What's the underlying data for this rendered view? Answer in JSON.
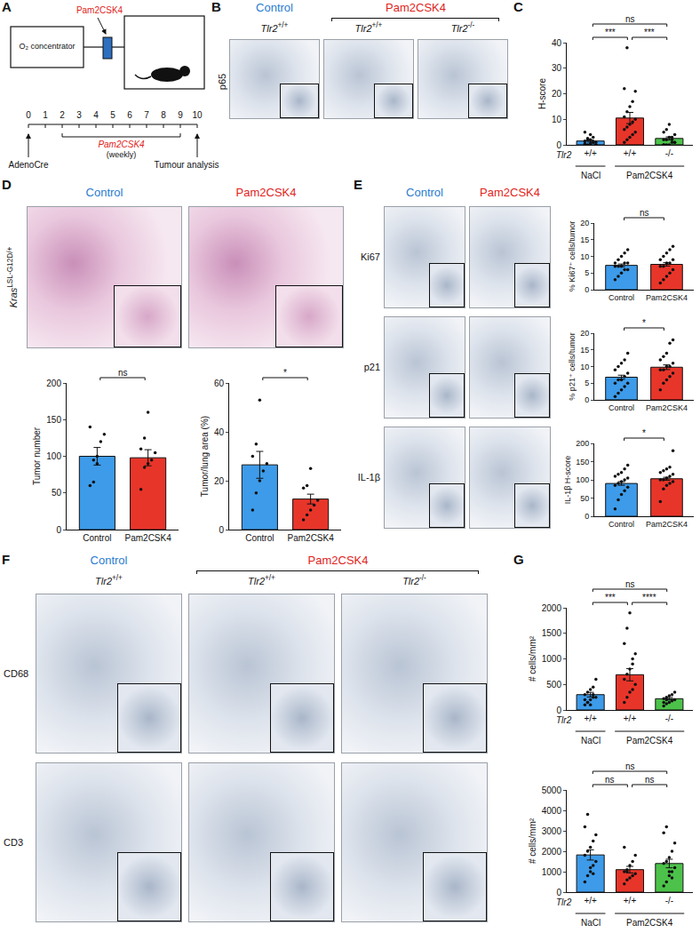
{
  "figure": {
    "A": {
      "letter": "A",
      "device": "O₂ concentrator",
      "agent": "Pam2CSK4",
      "timeline_ticks": [
        0,
        1,
        2,
        3,
        4,
        5,
        6,
        7,
        8,
        9,
        10
      ],
      "start": {
        "at": 0,
        "label": "AdenoCre"
      },
      "treatment": {
        "from": 2,
        "to": 9,
        "label": "Pam2CSK4",
        "note": "(weekly)"
      },
      "end": {
        "at": 10,
        "label": "Tumour analysis"
      }
    },
    "B": {
      "letter": "B",
      "groups": [
        {
          "label": "Control",
          "color": "#2a7bd0",
          "span": [
            0,
            0
          ]
        },
        {
          "label": "Pam2CSK4",
          "color": "#e0231b",
          "span": [
            1,
            2
          ]
        }
      ],
      "gene": "Tlr2",
      "genotypes": [
        "+/+",
        "+/+",
        "-/-"
      ],
      "rows": [
        "p65"
      ]
    },
    "D": {
      "letter": "D",
      "groups": [
        {
          "label": "Control",
          "color": "#2a7bd0",
          "span": [
            0,
            0
          ]
        },
        {
          "label": "Pam2CSK4",
          "color": "#e0231b",
          "span": [
            1,
            1
          ]
        }
      ],
      "row_gene": "Kras",
      "row_allele": "LSL-G12D/+"
    },
    "E": {
      "letter": "E",
      "groups": [
        {
          "label": "Control",
          "color": "#2a7bd0",
          "span": [
            0,
            0
          ]
        },
        {
          "label": "Pam2CSK4",
          "color": "#e0231b",
          "span": [
            1,
            1
          ]
        }
      ],
      "rows": [
        "Ki67",
        "p21",
        "IL-1β"
      ]
    },
    "F": {
      "letter": "F",
      "groups": [
        {
          "label": "Control",
          "color": "#2a7bd0",
          "span": [
            0,
            0
          ]
        },
        {
          "label": "Pam2CSK4",
          "color": "#e0231b",
          "span": [
            1,
            2
          ]
        }
      ],
      "gene": "Tlr2",
      "genotypes": [
        "+/+",
        "+/+",
        "-/-"
      ],
      "rows": [
        "CD68",
        "CD3"
      ]
    }
  },
  "chart_data": [
    {
      "panel": "C",
      "type": "bar",
      "ylabel": "H-score",
      "gene": "Tlr2",
      "categories": [
        "+/+",
        "+/+",
        "-/-"
      ],
      "groups": [
        {
          "label": "NaCl",
          "span": [
            0,
            0
          ]
        },
        {
          "label": "Pam2CSK4",
          "span": [
            1,
            2
          ]
        }
      ],
      "values": [
        1.5,
        10.5,
        2.5
      ],
      "errors": [
        0.4,
        2.2,
        0.6
      ],
      "colors": [
        "#3d9be9",
        "#e8352a",
        "#4cc24a"
      ],
      "points": [
        [
          0,
          0,
          0.5,
          1,
          1,
          1.5,
          2,
          2,
          3,
          0,
          0.5,
          2.5,
          4,
          1,
          0,
          5
        ],
        [
          1,
          2,
          3,
          4,
          5,
          6,
          7,
          8,
          9,
          10,
          11,
          13,
          15,
          17,
          21,
          22,
          38
        ],
        [
          0,
          0,
          0,
          1,
          1,
          2,
          2,
          3,
          3,
          4,
          5,
          6,
          8,
          2,
          1,
          0
        ]
      ],
      "ylim": [
        0,
        40
      ],
      "yticks": [
        0,
        10,
        20,
        30,
        40
      ],
      "significance": [
        {
          "from": 0,
          "to": 1,
          "label": "***"
        },
        {
          "from": 1,
          "to": 2,
          "label": "***"
        },
        {
          "from": 0,
          "to": 2,
          "label": "ns"
        }
      ]
    },
    {
      "panel": "D",
      "type": "bar",
      "ylabel": "Tumor number",
      "categories": [
        "Control",
        "Pam2CSK4"
      ],
      "values": [
        100,
        98
      ],
      "errors": [
        12,
        11
      ],
      "colors": [
        "#3d9be9",
        "#e8352a"
      ],
      "points": [
        [
          60,
          65,
          100,
          120,
          130,
          140,
          95,
          90
        ],
        [
          55,
          85,
          90,
          95,
          105,
          110,
          125,
          160
        ]
      ],
      "ylim": [
        0,
        200
      ],
      "yticks": [
        0,
        50,
        100,
        150,
        200
      ],
      "significance": [
        {
          "from": 0,
          "to": 1,
          "label": "ns"
        }
      ]
    },
    {
      "panel": "D",
      "type": "bar",
      "ylabel": "Tumor/lung area (%)",
      "categories": [
        "Control",
        "Pam2CSK4"
      ],
      "values": [
        26.5,
        12.5
      ],
      "errors": [
        5.5,
        2
      ],
      "colors": [
        "#3d9be9",
        "#e8352a"
      ],
      "points": [
        [
          8,
          15,
          20,
          24,
          27,
          30,
          35,
          53
        ],
        [
          4,
          6,
          8,
          10,
          12,
          17,
          18,
          25
        ]
      ],
      "ylim": [
        0,
        60
      ],
      "yticks": [
        0,
        20,
        40,
        60
      ],
      "significance": [
        {
          "from": 0,
          "to": 1,
          "label": "*"
        }
      ]
    },
    {
      "panel": "E",
      "type": "bar",
      "ylabel": "% Ki67⁺ cells/tumor",
      "categories": [
        "Control",
        "Pam2CSK4"
      ],
      "values": [
        7.3,
        7.6
      ],
      "errors": [
        0.4,
        0.5
      ],
      "colors": [
        "#3d9be9",
        "#e8352a"
      ],
      "points": [
        [
          3,
          4,
          5,
          6,
          6,
          7,
          7,
          7,
          8,
          8,
          8,
          9,
          10,
          11,
          12
        ],
        [
          2,
          3,
          4,
          5,
          6,
          7,
          7,
          8,
          8,
          9,
          9,
          10,
          11,
          12,
          13
        ]
      ],
      "ylim": [
        0,
        20
      ],
      "yticks": [
        0,
        5,
        10,
        15,
        20
      ],
      "significance": [
        {
          "from": 0,
          "to": 1,
          "label": "ns"
        }
      ]
    },
    {
      "panel": "E",
      "type": "bar",
      "ylabel": "% p21⁺ cells/tumor",
      "categories": [
        "Control",
        "Pam2CSK4"
      ],
      "values": [
        6.8,
        9.8
      ],
      "errors": [
        0.6,
        0.7
      ],
      "colors": [
        "#3d9be9",
        "#e8352a"
      ],
      "points": [
        [
          1,
          2,
          3,
          4,
          5,
          5,
          6,
          6,
          7,
          8,
          9,
          10,
          11,
          12,
          14
        ],
        [
          3,
          5,
          6,
          7,
          8,
          9,
          9,
          10,
          10,
          11,
          12,
          13,
          14,
          17,
          18
        ]
      ],
      "ylim": [
        0,
        20
      ],
      "yticks": [
        0,
        5,
        10,
        15,
        20
      ],
      "significance": [
        {
          "from": 0,
          "to": 1,
          "label": "*"
        }
      ]
    },
    {
      "panel": "E",
      "type": "bar",
      "ylabel": "IL-1β H-score",
      "categories": [
        "Control",
        "Pam2CSK4"
      ],
      "values": [
        90,
        103
      ],
      "errors": [
        5,
        4
      ],
      "colors": [
        "#3d9be9",
        "#e8352a"
      ],
      "points": [
        [
          20,
          45,
          60,
          70,
          80,
          85,
          90,
          95,
          100,
          105,
          110,
          115,
          120,
          130,
          140
        ],
        [
          40,
          75,
          85,
          90,
          95,
          100,
          100,
          105,
          110,
          115,
          120,
          125,
          130,
          135,
          180
        ]
      ],
      "ylim": [
        0,
        200
      ],
      "yticks": [
        0,
        50,
        100,
        150,
        200
      ],
      "significance": [
        {
          "from": 0,
          "to": 1,
          "label": "*"
        }
      ]
    },
    {
      "panel": "G",
      "type": "bar",
      "ylabel": "# cells/mm²",
      "gene": "Tlr2",
      "categories": [
        "+/+",
        "+/+",
        "-/-"
      ],
      "groups": [
        {
          "label": "NaCl",
          "span": [
            0,
            0
          ]
        },
        {
          "label": "Pam2CSK4",
          "span": [
            1,
            2
          ]
        }
      ],
      "values": [
        300,
        690,
        220
      ],
      "errors": [
        45,
        120,
        25
      ],
      "colors": [
        "#3d9be9",
        "#e8352a",
        "#4cc24a"
      ],
      "points": [
        [
          100,
          150,
          200,
          250,
          250,
          300,
          350,
          400,
          450,
          600,
          200,
          150,
          100,
          300
        ],
        [
          150,
          250,
          350,
          400,
          500,
          600,
          700,
          800,
          900,
          1100,
          1300,
          1600,
          1900,
          1000
        ],
        [
          80,
          120,
          150,
          180,
          200,
          220,
          250,
          280,
          300,
          350,
          150,
          200
        ]
      ],
      "ylim": [
        0,
        2000
      ],
      "yticks": [
        0,
        500,
        1000,
        1500,
        2000
      ],
      "significance": [
        {
          "from": 0,
          "to": 1,
          "label": "***"
        },
        {
          "from": 1,
          "to": 2,
          "label": "****"
        },
        {
          "from": 0,
          "to": 2,
          "label": "ns"
        }
      ]
    },
    {
      "panel": "G",
      "type": "bar",
      "ylabel": "# cells/mm²",
      "gene": "Tlr2",
      "categories": [
        "+/+",
        "+/+",
        "-/-"
      ],
      "groups": [
        {
          "label": "NaCl",
          "span": [
            0,
            0
          ]
        },
        {
          "label": "Pam2CSK4",
          "span": [
            1,
            2
          ]
        }
      ],
      "values": [
        1820,
        1100,
        1400
      ],
      "errors": [
        250,
        160,
        210
      ],
      "colors": [
        "#3d9be9",
        "#e8352a",
        "#4cc24a"
      ],
      "points": [
        [
          500,
          800,
          1000,
          1300,
          1500,
          1800,
          2000,
          2200,
          2500,
          2800,
          3200,
          3800,
          1200,
          900
        ],
        [
          400,
          600,
          700,
          800,
          900,
          1000,
          1100,
          1300,
          1500,
          1800,
          2200,
          1000
        ],
        [
          300,
          500,
          800,
          1000,
          1200,
          1400,
          1500,
          1700,
          2000,
          2400,
          2900,
          3200,
          1000,
          700
        ]
      ],
      "ylim": [
        0,
        5000
      ],
      "yticks": [
        0,
        1000,
        2000,
        3000,
        4000,
        5000
      ],
      "significance": [
        {
          "from": 0,
          "to": 1,
          "label": "ns"
        },
        {
          "from": 1,
          "to": 2,
          "label": "ns"
        },
        {
          "from": 0,
          "to": 2,
          "label": "ns"
        }
      ]
    }
  ]
}
